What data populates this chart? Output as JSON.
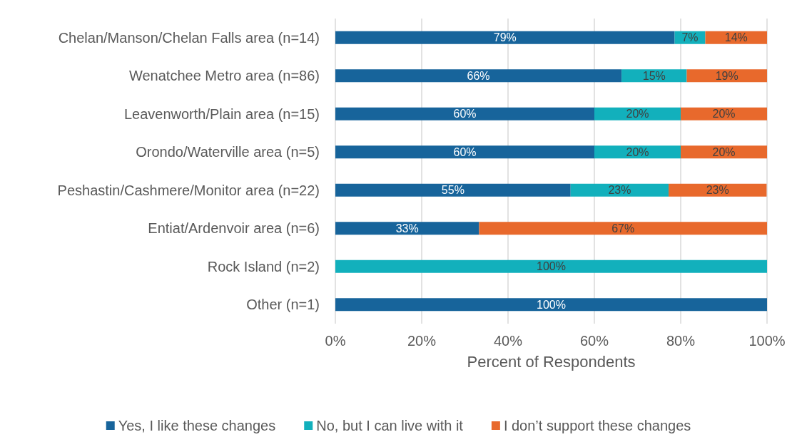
{
  "chart_data": {
    "type": "bar",
    "orientation": "horizontal",
    "stacked": true,
    "xlabel": "Percent of Respondents",
    "categories": [
      "Chelan/Manson/Chelan Falls area (n=14)",
      "Wenatchee Metro area (n=86)",
      "Leavenworth/Plain area (n=15)",
      "Orondo/Waterville area (n=5)",
      "Peshastin/Cashmere/Monitor area (n=22)",
      "Entiat/Ardenvoir area (n=6)",
      "Rock Island (n=2)",
      "Other (n=1)"
    ],
    "series": [
      {
        "name": "Yes, I like these changes",
        "color": "#17649b",
        "values": [
          78.6,
          66.3,
          60,
          60,
          54.5,
          33.3,
          0,
          100
        ],
        "value_labels": [
          "79%",
          "66%",
          "60%",
          "60%",
          "55%",
          "33%",
          null,
          "100%"
        ]
      },
      {
        "name": "No, but I can live with it",
        "color": "#12b0bc",
        "values": [
          7.1,
          15.1,
          20,
          20,
          22.7,
          0,
          100,
          0
        ],
        "value_labels": [
          "7%",
          "15%",
          "20%",
          "20%",
          "23%",
          null,
          "100%",
          null
        ]
      },
      {
        "name": "I don’t support these changes",
        "color": "#e8692c",
        "values": [
          14.3,
          18.6,
          20,
          20,
          22.7,
          66.7,
          0,
          0
        ],
        "value_labels": [
          "14%",
          "19%",
          "20%",
          "20%",
          "23%",
          "67%",
          null,
          null
        ]
      }
    ],
    "xlim": [
      0,
      100
    ],
    "xticks": [
      {
        "value": 0,
        "label": "0%"
      },
      {
        "value": 20,
        "label": "20%"
      },
      {
        "value": 40,
        "label": "40%"
      },
      {
        "value": 60,
        "label": "60%"
      },
      {
        "value": 80,
        "label": "80%"
      },
      {
        "value": 100,
        "label": "100%"
      }
    ],
    "grid": "x",
    "legend": "bottom"
  }
}
